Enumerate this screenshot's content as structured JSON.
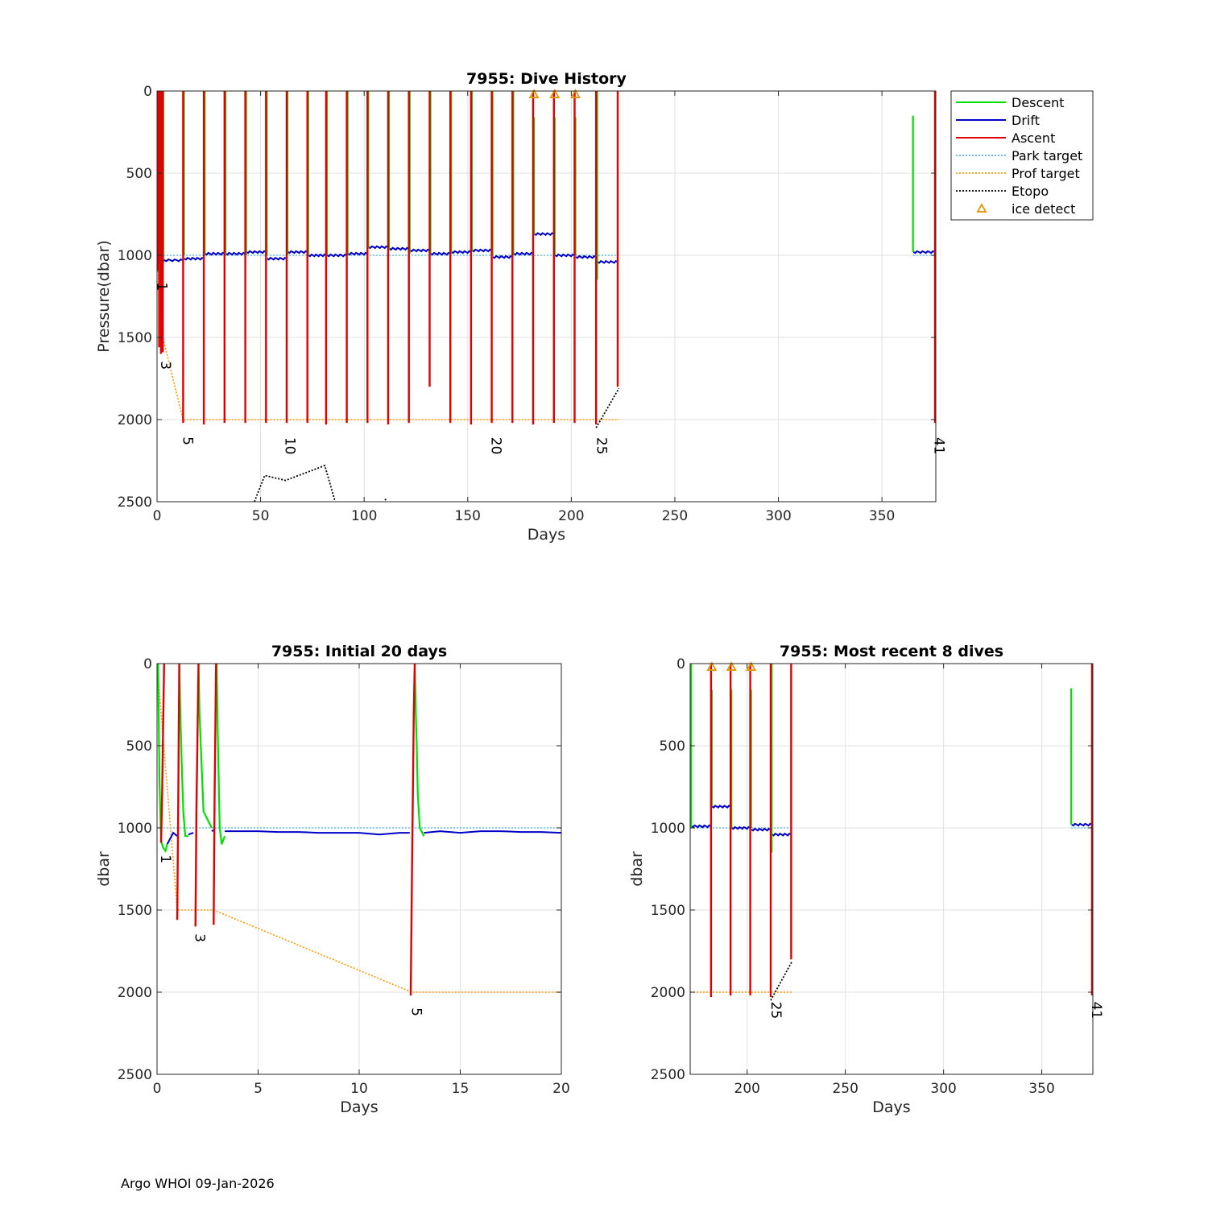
{
  "footer": "Argo WHOI 09-Jan-2026",
  "colors": {
    "descent": "#00e000",
    "drift": "#0000c8",
    "ascent": "#e00000",
    "park": "#4db3e6",
    "prof": "#ff9900",
    "etopo": "#000000",
    "ice": "#e69500",
    "grid": "#e0e0e0"
  },
  "legend": [
    {
      "key": "descent",
      "label": "Descent"
    },
    {
      "key": "drift",
      "label": "Drift"
    },
    {
      "key": "ascent",
      "label": "Ascent"
    },
    {
      "key": "park",
      "label": "Park target"
    },
    {
      "key": "prof",
      "label": "Prof target"
    },
    {
      "key": "etopo",
      "label": "Etopo"
    },
    {
      "key": "ice",
      "label": "ice detect"
    }
  ],
  "chart_data": [
    {
      "id": "main",
      "type": "line",
      "title": "7955: Dive History",
      "xlabel": "Days",
      "ylabel": "Pressure(dbar)",
      "xlim": [
        0,
        376
      ],
      "ylim": [
        0,
        2500
      ],
      "xticks": [
        0,
        50,
        100,
        150,
        200,
        250,
        300,
        350
      ],
      "yticks": [
        0,
        500,
        1000,
        1500,
        2000,
        2500
      ],
      "dives": [
        {
          "t": 0.3,
          "peak": 1090
        },
        {
          "t": 1.0,
          "peak": 1560
        },
        {
          "t": 1.9,
          "peak": 1600
        },
        {
          "t": 2.8,
          "peak": 1590
        },
        {
          "t": 12.6,
          "peak": 2020
        },
        {
          "t": 22.6,
          "peak": 2030
        },
        {
          "t": 32.6,
          "peak": 2020
        },
        {
          "t": 42.6,
          "peak": 2020
        },
        {
          "t": 52.6,
          "peak": 2020
        },
        {
          "t": 62.6,
          "peak": 2020
        },
        {
          "t": 72.6,
          "peak": 2020
        },
        {
          "t": 81.6,
          "peak": 2030
        },
        {
          "t": 91.6,
          "peak": 2020
        },
        {
          "t": 101.6,
          "peak": 2020
        },
        {
          "t": 111.6,
          "peak": 2030
        },
        {
          "t": 121.6,
          "peak": 2020
        },
        {
          "t": 131.6,
          "peak": 1800
        },
        {
          "t": 141.6,
          "peak": 2020
        },
        {
          "t": 151.6,
          "peak": 2030
        },
        {
          "t": 161.6,
          "peak": 2020
        },
        {
          "t": 171.6,
          "peak": 2020
        },
        {
          "t": 181.6,
          "peak": 2030
        },
        {
          "t": 191.6,
          "peak": 2020
        },
        {
          "t": 201.6,
          "peak": 2020
        },
        {
          "t": 212.0,
          "peak": 2030
        },
        {
          "t": 222.4,
          "peak": 1800
        },
        {
          "t": 375.6,
          "peak": 2020
        }
      ],
      "descents": [
        {
          "t": 0.1,
          "top": 0,
          "bottom": 1100
        },
        {
          "t": 1.2,
          "top": 0,
          "bottom": 1050
        },
        {
          "t": 2.2,
          "top": 0,
          "bottom": 1000
        },
        {
          "t": 3.0,
          "top": 0,
          "bottom": 1050
        },
        {
          "t": 13.0,
          "top": 0,
          "bottom": 1000
        },
        {
          "t": 23.0,
          "top": 0,
          "bottom": 1000
        },
        {
          "t": 33.0,
          "top": 0,
          "bottom": 1000
        },
        {
          "t": 43.0,
          "top": 0,
          "bottom": 1000
        },
        {
          "t": 53.0,
          "top": 0,
          "bottom": 1000
        },
        {
          "t": 63.0,
          "top": 0,
          "bottom": 1000
        },
        {
          "t": 73.0,
          "top": 0,
          "bottom": 1000
        },
        {
          "t": 82.0,
          "top": 0,
          "bottom": 1000
        },
        {
          "t": 92.0,
          "top": 0,
          "bottom": 1000
        },
        {
          "t": 102.0,
          "top": 0,
          "bottom": 960
        },
        {
          "t": 112.0,
          "top": 0,
          "bottom": 970
        },
        {
          "t": 122.0,
          "top": 0,
          "bottom": 990
        },
        {
          "t": 132.0,
          "top": 0,
          "bottom": 990
        },
        {
          "t": 142.0,
          "top": 0,
          "bottom": 990
        },
        {
          "t": 152.0,
          "top": 0,
          "bottom": 980
        },
        {
          "t": 162.0,
          "top": 0,
          "bottom": 1000
        },
        {
          "t": 172.0,
          "top": 0,
          "bottom": 1000
        },
        {
          "t": 182.0,
          "top": 160,
          "bottom": 870
        },
        {
          "t": 192.0,
          "top": 160,
          "bottom": 1000
        },
        {
          "t": 202.0,
          "top": 160,
          "bottom": 1000
        },
        {
          "t": 212.5,
          "top": 0,
          "bottom": 1150
        },
        {
          "t": 365.0,
          "top": 150,
          "bottom": 980
        }
      ],
      "drift": [
        {
          "t0": 0.5,
          "t1": 12.5,
          "p": 1030
        },
        {
          "t0": 13.2,
          "t1": 22.5,
          "p": 1020
        },
        {
          "t0": 23.2,
          "t1": 32.5,
          "p": 990
        },
        {
          "t0": 33.2,
          "t1": 42.5,
          "p": 990
        },
        {
          "t0": 43.2,
          "t1": 52.5,
          "p": 980
        },
        {
          "t0": 53.2,
          "t1": 62.5,
          "p": 1020
        },
        {
          "t0": 63.2,
          "t1": 72.5,
          "p": 980
        },
        {
          "t0": 73.2,
          "t1": 81.5,
          "p": 1000
        },
        {
          "t0": 82.2,
          "t1": 91.5,
          "p": 1000
        },
        {
          "t0": 92.2,
          "t1": 101.5,
          "p": 990
        },
        {
          "t0": 102.2,
          "t1": 111.5,
          "p": 950
        },
        {
          "t0": 112.2,
          "t1": 121.5,
          "p": 960
        },
        {
          "t0": 122.2,
          "t1": 131.5,
          "p": 970
        },
        {
          "t0": 132.2,
          "t1": 141.5,
          "p": 990
        },
        {
          "t0": 142.2,
          "t1": 151.5,
          "p": 980
        },
        {
          "t0": 152.2,
          "t1": 161.5,
          "p": 970
        },
        {
          "t0": 162.2,
          "t1": 171.5,
          "p": 1010
        },
        {
          "t0": 172.2,
          "t1": 181.5,
          "p": 990
        },
        {
          "t0": 182.2,
          "t1": 191.5,
          "p": 870
        },
        {
          "t0": 192.2,
          "t1": 201.5,
          "p": 1000
        },
        {
          "t0": 202.2,
          "t1": 211.9,
          "p": 1010
        },
        {
          "t0": 212.7,
          "t1": 222.3,
          "p": 1040
        },
        {
          "t0": 365.2,
          "t1": 375.5,
          "p": 980
        }
      ],
      "park": [
        {
          "t0": 0,
          "t1": 223,
          "p": 1000
        },
        {
          "t0": 365,
          "t1": 376,
          "p": 1000
        }
      ],
      "prof": {
        "x": [
          0,
          1.0,
          2.8,
          12.6,
          223
        ],
        "y": [
          0,
          1500,
          1500,
          2000,
          2000
        ]
      },
      "etopo": [
        {
          "x": [
            47,
            52,
            62,
            81,
            86
          ],
          "y": [
            2500,
            2340,
            2370,
            2280,
            2500
          ]
        },
        {
          "x": [
            110,
            111
          ],
          "y": [
            2490,
            2480
          ]
        },
        {
          "x": [
            212,
            223
          ],
          "y": [
            2050,
            1810
          ]
        }
      ],
      "ice": [
        {
          "x": 182,
          "y": 20
        },
        {
          "x": 192,
          "y": 20
        },
        {
          "x": 202,
          "y": 20
        }
      ],
      "dive_labels": [
        {
          "x": 0.2,
          "y": 1190,
          "text": "1"
        },
        {
          "x": 2.0,
          "y": 1670,
          "text": "3"
        },
        {
          "x": 12.6,
          "y": 2130,
          "text": "5"
        },
        {
          "x": 62,
          "y": 2160,
          "text": "10"
        },
        {
          "x": 161.5,
          "y": 2160,
          "text": "20"
        },
        {
          "x": 212.5,
          "y": 2160,
          "text": "25"
        },
        {
          "x": 375.5,
          "y": 2160,
          "text": "41"
        }
      ],
      "show_legend": true
    },
    {
      "id": "initial",
      "type": "line",
      "title": "7955: Initial 20 days",
      "xlabel": "Days",
      "ylabel": "dbar",
      "xlim": [
        0,
        20
      ],
      "ylim": [
        0,
        2500
      ],
      "xticks": [
        0,
        5,
        10,
        15,
        20
      ],
      "yticks": [
        0,
        500,
        1000,
        1500,
        2000,
        2500
      ],
      "descent_paths": [
        {
          "x": [
            0.05,
            0.12,
            0.2,
            0.3,
            0.42,
            0.5
          ],
          "y": [
            0,
            700,
            1080,
            1120,
            1140,
            1100
          ]
        },
        {
          "x": [
            1.1,
            1.15,
            1.22,
            1.3,
            1.4,
            1.55
          ],
          "y": [
            0,
            300,
            600,
            900,
            1050,
            1050
          ]
        },
        {
          "x": [
            2.05,
            2.1,
            2.2,
            2.3,
            2.5,
            2.7
          ],
          "y": [
            0,
            300,
            600,
            900,
            950,
            1000
          ]
        },
        {
          "x": [
            2.95,
            3.0,
            3.05,
            3.1,
            3.2,
            3.35
          ],
          "y": [
            0,
            400,
            700,
            1000,
            1100,
            1050
          ]
        },
        {
          "x": [
            12.75,
            12.8,
            12.85,
            12.9,
            13.0,
            13.2
          ],
          "y": [
            0,
            300,
            500,
            800,
            1000,
            1050
          ]
        }
      ],
      "drift_paths": [
        {
          "x": [
            0.5,
            0.8,
            1.0
          ],
          "y": [
            1100,
            1030,
            1050
          ]
        },
        {
          "x": [
            1.55,
            1.8
          ],
          "y": [
            1040,
            1030
          ]
        },
        {
          "x": [
            2.7,
            2.85
          ],
          "y": [
            1020,
            1010
          ]
        },
        {
          "x": [
            3.35,
            4,
            5,
            6,
            7,
            8,
            9,
            10,
            11,
            12,
            12.5
          ],
          "y": [
            1020,
            1020,
            1020,
            1025,
            1025,
            1030,
            1030,
            1030,
            1040,
            1030,
            1030
          ]
        },
        {
          "x": [
            13.2,
            14,
            15,
            16,
            17,
            18,
            19,
            20
          ],
          "y": [
            1030,
            1020,
            1030,
            1020,
            1020,
            1025,
            1025,
            1030
          ]
        }
      ],
      "ascent_paths": [
        {
          "x": [
            0.2,
            0.25,
            0.3,
            0.35
          ],
          "y": [
            1090,
            800,
            400,
            0
          ]
        },
        {
          "x": [
            1.0,
            1.05,
            1.1
          ],
          "y": [
            1560,
            800,
            0
          ]
        },
        {
          "x": [
            1.9,
            1.95,
            2.05
          ],
          "y": [
            1600,
            900,
            0
          ]
        },
        {
          "x": [
            2.8,
            2.85,
            2.92
          ],
          "y": [
            1590,
            800,
            0
          ]
        },
        {
          "x": [
            12.55,
            12.6,
            12.7,
            12.75
          ],
          "y": [
            2020,
            1400,
            300,
            0
          ]
        }
      ],
      "park": [
        {
          "t0": 0,
          "t1": 20,
          "p": 1000
        }
      ],
      "prof": {
        "x": [
          0,
          1.0,
          2.8,
          12.6,
          20
        ],
        "y": [
          0,
          1500,
          1500,
          2000,
          2000
        ]
      },
      "etopo": [],
      "ice": [],
      "dive_labels": [
        {
          "x": 0.2,
          "y": 1190,
          "text": "1"
        },
        {
          "x": 1.9,
          "y": 1670,
          "text": "3"
        },
        {
          "x": 12.6,
          "y": 2120,
          "text": "5"
        }
      ],
      "show_legend": false
    },
    {
      "id": "recent",
      "type": "line",
      "title": "7955: Most recent 8 dives",
      "xlabel": "Days",
      "ylabel": "dbar",
      "xlim": [
        171,
        376
      ],
      "ylim": [
        0,
        2500
      ],
      "xticks": [
        200,
        250,
        300,
        350
      ],
      "yticks": [
        0,
        500,
        1000,
        1500,
        2000,
        2500
      ],
      "dives": [
        {
          "t": 181.6,
          "peak": 2030
        },
        {
          "t": 191.6,
          "peak": 2020
        },
        {
          "t": 201.6,
          "peak": 2020
        },
        {
          "t": 212.0,
          "peak": 2030
        },
        {
          "t": 222.4,
          "peak": 1800
        },
        {
          "t": 375.6,
          "peak": 2020
        }
      ],
      "descents": [
        {
          "t": 171.5,
          "top": 0,
          "bottom": 1000
        },
        {
          "t": 182.0,
          "top": 160,
          "bottom": 870
        },
        {
          "t": 192.0,
          "top": 160,
          "bottom": 1000
        },
        {
          "t": 202.0,
          "top": 160,
          "bottom": 1000
        },
        {
          "t": 212.5,
          "top": 0,
          "bottom": 1150
        },
        {
          "t": 365.0,
          "top": 150,
          "bottom": 980
        }
      ],
      "drift": [
        {
          "t0": 171.6,
          "t1": 181.5,
          "p": 990
        },
        {
          "t0": 182.2,
          "t1": 191.5,
          "p": 870
        },
        {
          "t0": 192.2,
          "t1": 201.5,
          "p": 1000
        },
        {
          "t0": 202.2,
          "t1": 211.9,
          "p": 1010
        },
        {
          "t0": 212.7,
          "t1": 222.3,
          "p": 1040
        },
        {
          "t0": 365.2,
          "t1": 375.5,
          "p": 980
        }
      ],
      "park": [
        {
          "t0": 171,
          "t1": 223,
          "p": 1000
        },
        {
          "t0": 365,
          "t1": 376,
          "p": 1000
        }
      ],
      "prof": {
        "x": [
          171,
          223
        ],
        "y": [
          2000,
          2000
        ]
      },
      "etopo": [
        {
          "x": [
            212,
            223
          ],
          "y": [
            2050,
            1810
          ]
        }
      ],
      "ice": [
        {
          "x": 182,
          "y": 20
        },
        {
          "x": 192,
          "y": 20
        },
        {
          "x": 202,
          "y": 20
        }
      ],
      "dive_labels": [
        {
          "x": 212.5,
          "y": 2110,
          "text": "25"
        },
        {
          "x": 375.5,
          "y": 2110,
          "text": "41"
        }
      ],
      "show_legend": false
    }
  ]
}
